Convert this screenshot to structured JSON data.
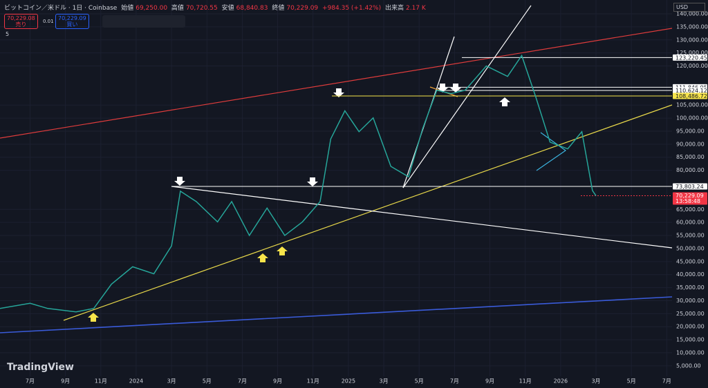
{
  "header": {
    "symbol": "ビットコイン／米ドル · 1日 · Coinbase",
    "open_label": "始値",
    "open": "69,250.00",
    "high_label": "高値",
    "high": "70,720.55",
    "low_label": "安値",
    "low": "68,840.83",
    "close_label": "終値",
    "close": "70,229.09",
    "change": "+984.35 (+1.42%)",
    "volume_label": "出来高",
    "volume": "2.17 K",
    "sell_price": "70,229.08",
    "sell_label": "売り",
    "spread": "0.01",
    "buy_price": "70,229.09",
    "buy_label": "買い",
    "indicators": "5",
    "currency": "USD",
    "brand": "TradingView"
  },
  "chart_data": {
    "type": "line",
    "series": [
      {
        "color": "#26a69a",
        "x": [
          4.3,
          6,
          7,
          8.6,
          9.6,
          10.6,
          11.8,
          13,
          14,
          14.5,
          15.4,
          16.6,
          17.4,
          18.4,
          19.4,
          20.4,
          21.4,
          22.4,
          23,
          23.8,
          24.6,
          25.4,
          26.4,
          27.4,
          28.2,
          29,
          29.8,
          30.6,
          31.8,
          33,
          33.8,
          34.6,
          35.4,
          36.4,
          37.2,
          37.8,
          38
        ],
        "values": [
          27000,
          29000,
          27000,
          25700,
          27000,
          36300,
          43000,
          40300,
          51000,
          72000,
          68000,
          60200,
          68000,
          55000,
          65500,
          55000,
          60200,
          68000,
          92000,
          102800,
          94800,
          100100,
          81500,
          77500,
          96000,
          110700,
          109400,
          110700,
          120000,
          116000,
          124000,
          108000,
          90800,
          88200,
          94800,
          72200,
          70229.09
        ]
      }
    ],
    "xlim": [
      4.3,
      42.3
    ],
    "ylim": [
      145300,
      1000
    ],
    "xticks": [
      {
        "value": 6,
        "label": "7月"
      },
      {
        "value": 8,
        "label": "9月"
      },
      {
        "value": 10,
        "label": "11月"
      },
      {
        "value": 12,
        "label": "2024"
      },
      {
        "value": 14,
        "label": "3月"
      },
      {
        "value": 16,
        "label": "5月"
      },
      {
        "value": 18,
        "label": "7月"
      },
      {
        "value": 20,
        "label": "9月"
      },
      {
        "value": 22,
        "label": "11月"
      },
      {
        "value": 24,
        "label": "2025"
      },
      {
        "value": 26,
        "label": "3月"
      },
      {
        "value": 28,
        "label": "5月"
      },
      {
        "value": 30,
        "label": "7月"
      },
      {
        "value": 32,
        "label": "9月"
      },
      {
        "value": 34,
        "label": "11月"
      },
      {
        "value": 36,
        "label": "2026"
      },
      {
        "value": 38,
        "label": "3月"
      },
      {
        "value": 40,
        "label": "5月"
      },
      {
        "value": 42,
        "label": "7月"
      }
    ],
    "yticks": [
      {
        "value": 140000,
        "label": "140,000.00"
      },
      {
        "value": 135000,
        "label": "135,000.00"
      },
      {
        "value": 130000,
        "label": "130,000.00"
      },
      {
        "value": 125000,
        "label": "125,000.00"
      },
      {
        "value": 120000,
        "label": "120,000.00"
      },
      {
        "value": 105000,
        "label": "105,000.00"
      },
      {
        "value": 100000,
        "label": "100,000.00"
      },
      {
        "value": 95000,
        "label": "95,000.00"
      },
      {
        "value": 90000,
        "label": "90,000.00"
      },
      {
        "value": 85000,
        "label": "85,000.00"
      },
      {
        "value": 80000,
        "label": "80,000.00"
      },
      {
        "value": 65000,
        "label": "65,000.00"
      },
      {
        "value": 60000,
        "label": "60,000.00"
      },
      {
        "value": 55000,
        "label": "55,000.00"
      },
      {
        "value": 50000,
        "label": "50,000.00"
      },
      {
        "value": 45000,
        "label": "45,000.00"
      },
      {
        "value": 40000,
        "label": "40,000.00"
      },
      {
        "value": 35000,
        "label": "35,000.00"
      },
      {
        "value": 30000,
        "label": "30,000.00"
      },
      {
        "value": 25000,
        "label": "25,000.00"
      },
      {
        "value": 20000,
        "label": "20,000.00"
      },
      {
        "value": 15000,
        "label": "15,000.00"
      },
      {
        "value": 10000,
        "label": "10,000.00"
      },
      {
        "value": 5000,
        "label": "5,000.00"
      }
    ],
    "levels": [
      {
        "value": 123220.45,
        "label": "123,220.45",
        "color": "#ffffff"
      },
      {
        "value": 111846.95,
        "label": "111,846.95",
        "color": "#ffffff"
      },
      {
        "value": 110624.12,
        "label": "110,624.12",
        "color": "#ffffff"
      },
      {
        "value": 108486.72,
        "label": "108,486.72",
        "color": "#f7e44a"
      },
      {
        "value": 73803.24,
        "label": "73,803.24",
        "color": "#ffffff"
      },
      {
        "value": 70229.09,
        "label": "70,229.09",
        "color": "#f23645",
        "countdown": "13:58:48"
      }
    ]
  }
}
